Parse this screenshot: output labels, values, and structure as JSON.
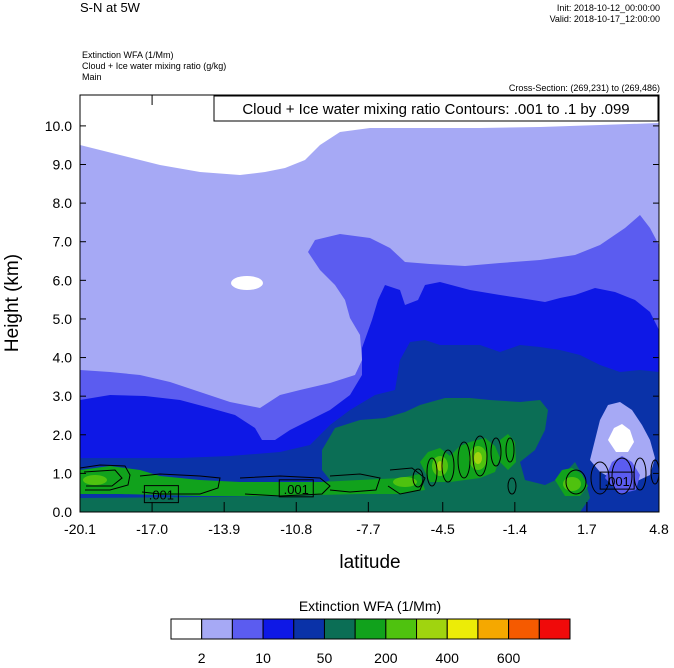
{
  "header": {
    "title": "S-N at 5W",
    "init": "Init: 2018-10-12_00:00:00",
    "valid": "Valid: 2018-10-17_12:00:00",
    "fields": [
      "Extinction WFA   (1/Mm)",
      "Cloud + Ice water mixing ratio   (g/kg)",
      "Main"
    ],
    "cross_section": "Cross-Section: (269,231) to (269,486)",
    "contour_info": "Cloud + Ice water mixing ratio Contours: .001 to .1 by .099"
  },
  "chart_data": {
    "type": "heatmap",
    "xlabel": "latitude",
    "ylabel": "Height (km)",
    "xlim": [
      -20.1,
      4.8
    ],
    "ylim": [
      0.0,
      10.8
    ],
    "x_ticks": [
      "-20.1",
      "-17.0",
      "-13.9",
      "-10.8",
      "-7.7",
      "-4.5",
      "-1.4",
      "1.7",
      "4.8"
    ],
    "y_ticks": [
      "0.0",
      "1.0",
      "2.0",
      "3.0",
      "4.0",
      "5.0",
      "6.0",
      "7.0",
      "8.0",
      "9.0",
      "10.0"
    ],
    "contour_labels": [
      {
        "text": ".001",
        "x": -16.6,
        "y": 0.45
      },
      {
        "text": ".001",
        "x": -10.8,
        "y": 0.6
      },
      {
        "text": ".001",
        "x": 3.0,
        "y": 0.8
      }
    ],
    "colorbar": {
      "title": "Extinction WFA  (1/Mm)",
      "colors": [
        "#ffffff",
        "#a6a9f5",
        "#5b5cf0",
        "#0e18e6",
        "#0a32a8",
        "#0b6e55",
        "#11a21c",
        "#4fc20f",
        "#a0d40f",
        "#ecec07",
        "#f5a800",
        "#f55a00",
        "#f00a0a"
      ],
      "labels": [
        "2",
        "10",
        "50",
        "200",
        "400",
        "600"
      ],
      "label_boundaries": [
        1,
        3,
        5,
        7,
        9,
        11
      ]
    }
  }
}
